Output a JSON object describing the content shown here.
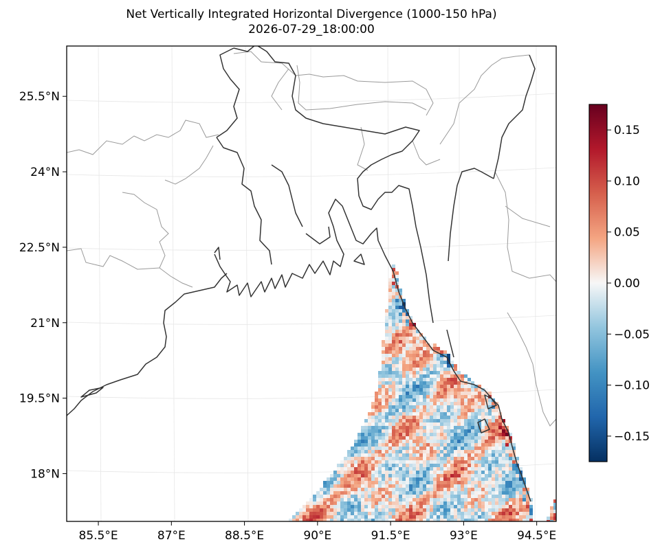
{
  "title": "Net Vertically Integrated Horizontal Divergence (1000-150 hPa)",
  "subtitle": "2026-07-29_18:00:00",
  "chart_data": {
    "type": "heatmap",
    "title": "Net Vertically Integrated Horizontal Divergence (1000-150 hPa)",
    "subtitle": "2026-07-29_18:00:00",
    "xlabel": "",
    "ylabel": "",
    "x_ticks": [
      "85.5°E",
      "87°E",
      "88.5°E",
      "90°E",
      "91.5°E",
      "93°E",
      "94.5°E"
    ],
    "x_tick_values": [
      85.5,
      87,
      88.5,
      90,
      91.5,
      93,
      94.5
    ],
    "y_ticks": [
      "25.5°N",
      "24°N",
      "22.5°N",
      "21°N",
      "19.5°N",
      "18°N"
    ],
    "y_tick_values": [
      25.5,
      24,
      22.5,
      21,
      19.5,
      18
    ],
    "xlim": [
      84.85,
      94.9
    ],
    "ylim": [
      17.05,
      26.5
    ],
    "colorbar": {
      "colormap": "RdBu_r",
      "range": [
        -0.175,
        0.175
      ],
      "tick_values": [
        0.15,
        0.1,
        0.05,
        0.0,
        -0.05,
        -0.1,
        -0.15
      ],
      "tick_labels": [
        "0.15",
        "0.10",
        "0.05",
        "0.00",
        "−0.05",
        "−0.10",
        "−0.15"
      ]
    },
    "field_coverage": "Bay of Bengal only (ocean points south-east of the Bangladesh/Myanmar coast); land and the western bay are blank",
    "field_range_shown": [
      -0.17,
      0.17
    ],
    "colors": {
      "max": "#67001f",
      "high": "#d6604d",
      "zero": "#f7f7f7",
      "low": "#4393c3",
      "min": "#053061",
      "coastline": "#333333",
      "borders": "#999999",
      "gridlines": "#e6e6e6"
    }
  }
}
